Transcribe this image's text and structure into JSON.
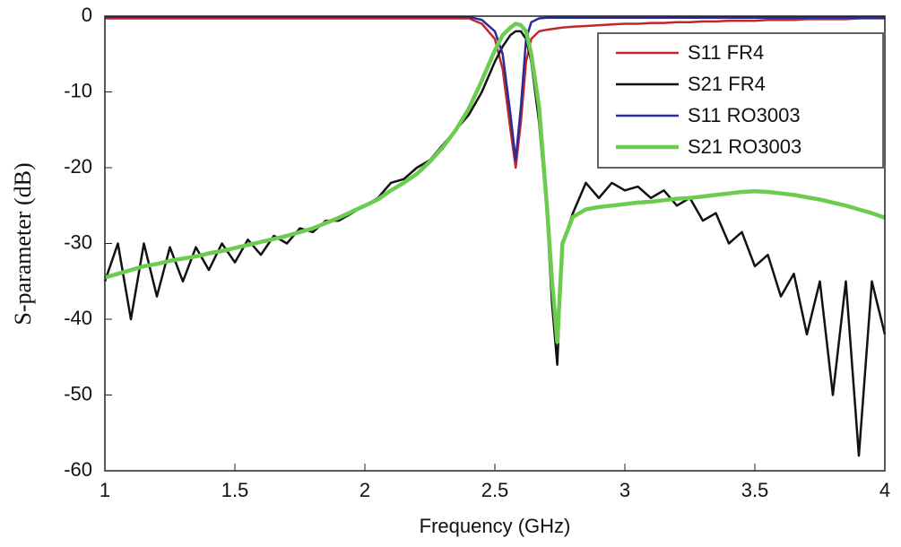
{
  "chart_data": {
    "type": "line",
    "xlabel": "Frequency (GHz)",
    "ylabel": "S-parameter (dB)",
    "x": [
      1.0,
      1.05,
      1.1,
      1.15,
      1.2,
      1.25,
      1.3,
      1.35,
      1.4,
      1.45,
      1.5,
      1.55,
      1.6,
      1.65,
      1.7,
      1.75,
      1.8,
      1.85,
      1.9,
      1.95,
      2.0,
      2.05,
      2.1,
      2.15,
      2.2,
      2.25,
      2.3,
      2.35,
      2.4,
      2.45,
      2.5,
      2.53,
      2.56,
      2.58,
      2.6,
      2.62,
      2.64,
      2.67,
      2.7,
      2.72,
      2.74,
      2.76,
      2.8,
      2.85,
      2.9,
      2.95,
      3.0,
      3.05,
      3.1,
      3.15,
      3.2,
      3.25,
      3.3,
      3.35,
      3.4,
      3.45,
      3.5,
      3.55,
      3.6,
      3.65,
      3.7,
      3.75,
      3.8,
      3.85,
      3.9,
      3.95,
      4.0
    ],
    "series": [
      {
        "name": "S11 FR4",
        "color": "#c0282e",
        "width": 2.5,
        "values": [
          -0.3,
          -0.3,
          -0.3,
          -0.3,
          -0.3,
          -0.3,
          -0.3,
          -0.3,
          -0.3,
          -0.3,
          -0.3,
          -0.3,
          -0.3,
          -0.3,
          -0.3,
          -0.3,
          -0.3,
          -0.3,
          -0.3,
          -0.3,
          -0.3,
          -0.3,
          -0.3,
          -0.3,
          -0.3,
          -0.3,
          -0.3,
          -0.3,
          -0.3,
          -1,
          -3,
          -7,
          -15,
          -20,
          -14,
          -6,
          -3,
          -2,
          -1.8,
          -1.7,
          -1.6,
          -1.5,
          -1.4,
          -1.3,
          -1.2,
          -1.1,
          -1,
          -1,
          -0.9,
          -0.9,
          -0.8,
          -0.8,
          -0.7,
          -0.7,
          -0.6,
          -0.6,
          -0.6,
          -0.5,
          -0.5,
          -0.5,
          -0.4,
          -0.4,
          -0.4,
          -0.4,
          -0.3,
          -0.3,
          -0.3
        ]
      },
      {
        "name": "S21 FR4",
        "color": "#111111",
        "width": 2.5,
        "values": [
          -35,
          -30,
          -40,
          -30,
          -37,
          -30.5,
          -35,
          -30.5,
          -33.5,
          -30,
          -32.5,
          -29.5,
          -31.5,
          -29,
          -30,
          -28,
          -28.5,
          -27,
          -27,
          -26,
          -25,
          -24,
          -22,
          -21.5,
          -20,
          -19,
          -17,
          -15,
          -13,
          -10,
          -6,
          -4,
          -2.5,
          -2,
          -2,
          -3,
          -6,
          -14,
          -26,
          -38,
          -46,
          -30,
          -26,
          -22,
          -24,
          -22,
          -23,
          -22.5,
          -24,
          -23,
          -25,
          -24,
          -27,
          -26,
          -30,
          -28.5,
          -33,
          -31.5,
          -37,
          -34,
          -42,
          -35,
          -50,
          -35,
          -58,
          -35,
          -42
        ]
      },
      {
        "name": "S11 RO3003",
        "color": "#2a2a9a",
        "width": 2.5,
        "values": [
          -0.1,
          -0.1,
          -0.1,
          -0.1,
          -0.1,
          -0.1,
          -0.1,
          -0.1,
          -0.1,
          -0.1,
          -0.1,
          -0.1,
          -0.1,
          -0.1,
          -0.1,
          -0.1,
          -0.1,
          -0.1,
          -0.1,
          -0.1,
          -0.1,
          -0.1,
          -0.1,
          -0.1,
          -0.1,
          -0.1,
          -0.1,
          -0.1,
          -0.1,
          -0.5,
          -2,
          -5,
          -13,
          -19,
          -12,
          -3,
          -0.8,
          -0.3,
          -0.2,
          -0.2,
          -0.2,
          -0.2,
          -0.2,
          -0.2,
          -0.2,
          -0.2,
          -0.2,
          -0.2,
          -0.2,
          -0.2,
          -0.2,
          -0.2,
          -0.2,
          -0.2,
          -0.2,
          -0.2,
          -0.2,
          -0.2,
          -0.2,
          -0.2,
          -0.2,
          -0.2,
          -0.2,
          -0.2,
          -0.2,
          -0.2,
          -0.2
        ]
      },
      {
        "name": "S21 RO3003",
        "color": "#6ccc50",
        "width": 4.5,
        "values": [
          -34.5,
          -34,
          -33.5,
          -33,
          -32.7,
          -32.3,
          -32,
          -31.7,
          -31.3,
          -31,
          -30.6,
          -30.2,
          -29.8,
          -29.4,
          -29,
          -28.5,
          -28,
          -27.3,
          -26.6,
          -25.8,
          -25,
          -24.2,
          -23,
          -22,
          -20.8,
          -19.2,
          -17.3,
          -15,
          -12.2,
          -8.5,
          -4.5,
          -2.5,
          -1.5,
          -1,
          -1.2,
          -2,
          -5,
          -12,
          -25,
          -35,
          -43,
          -30,
          -26.5,
          -25.5,
          -25.2,
          -25,
          -24.8,
          -24.6,
          -24.5,
          -24.3,
          -24.1,
          -24,
          -23.8,
          -23.6,
          -23.4,
          -23.2,
          -23.1,
          -23.2,
          -23.4,
          -23.6,
          -23.9,
          -24.2,
          -24.6,
          -25,
          -25.5,
          -26,
          -26.6
        ]
      }
    ],
    "xlim": [
      1,
      4
    ],
    "xticks": [
      1,
      1.5,
      2,
      2.5,
      3,
      3.5,
      4
    ],
    "ylim": [
      -60,
      0
    ],
    "yticks": [
      0,
      -10,
      -20,
      -30,
      -40,
      -50,
      -60
    ],
    "grid": false,
    "legend": "upper right"
  }
}
